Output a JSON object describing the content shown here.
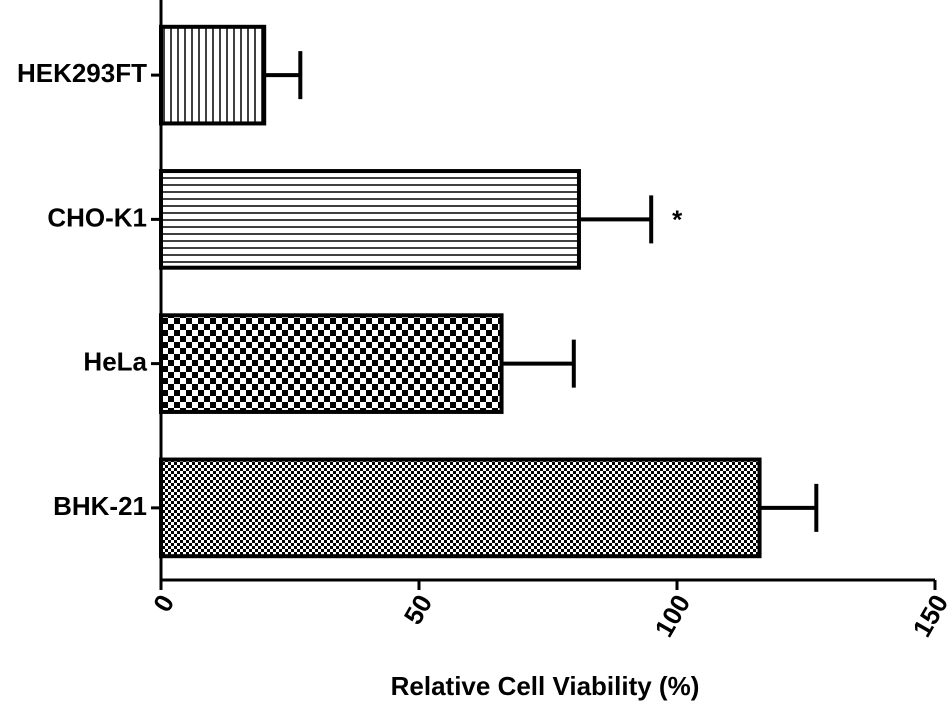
{
  "chart_data": {
    "type": "bar",
    "orientation": "horizontal",
    "categories": [
      "HEK293FT",
      "CHO-K1",
      "HeLa",
      "BHK-21"
    ],
    "values": [
      20,
      81,
      66,
      116
    ],
    "errors": [
      7,
      14,
      14,
      11
    ],
    "color": "#000000",
    "xlabel": "Relative Cell Viability (%)",
    "annotation": "*",
    "xlim": [
      0,
      150
    ],
    "xticks": [
      0,
      50,
      100,
      150
    ],
    "grid": false
  }
}
